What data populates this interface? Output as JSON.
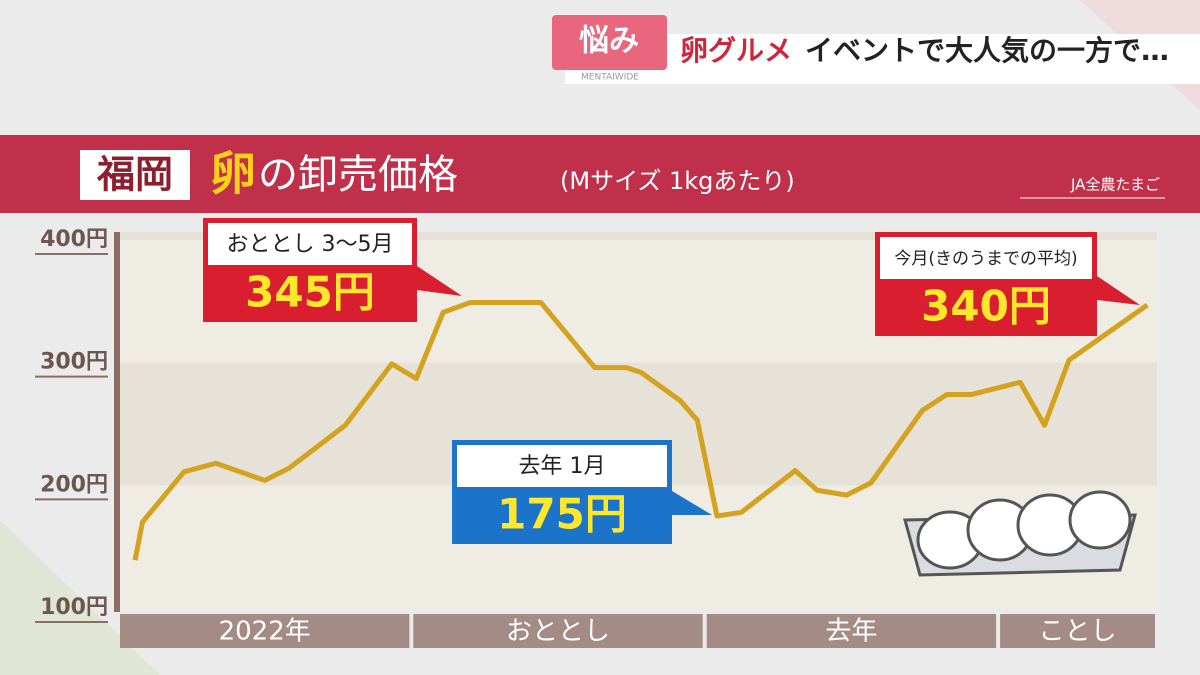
{
  "banner": {
    "tag": "悩み",
    "brand": "MENTAIWIDE",
    "topic": "卵グルメ",
    "headline": "イベントで大人気の一方で…"
  },
  "chart_data": {
    "type": "line",
    "region": "福岡",
    "title_head": "卵",
    "title": "の卸売価格",
    "subtitle": "(Mサイズ 1kgあたり)",
    "source": "JA全農たまご",
    "x": [
      0.7,
      1.0,
      2.7,
      4.0,
      6.0,
      7.0,
      9.3,
      11.2,
      12.2,
      13.3,
      14.4,
      17.3,
      19.5,
      20.8,
      21.4,
      23.0,
      23.7,
      24.5,
      25.5,
      27.7,
      28.6,
      29.8,
      30.8,
      32.9,
      33.9,
      34.9,
      36.9,
      37.9,
      38.9,
      42.1
    ],
    "series": [
      {
        "color": "#d4a21e",
        "values": [
          139,
          170,
          211,
          218,
          204,
          214,
          249,
          299,
          287,
          341,
          349,
          349,
          296,
          296,
          292,
          269,
          253,
          175,
          178,
          212,
          196,
          192,
          202,
          261,
          274,
          274,
          284,
          249,
          302,
          347
        ]
      }
    ],
    "xlim": [
      0,
      42.5
    ],
    "periods": [
      {
        "label": "2022年",
        "start": 0,
        "end": 12
      },
      {
        "label": "おととし",
        "start": 12,
        "end": 24
      },
      {
        "label": "去年",
        "start": 24,
        "end": 36
      },
      {
        "label": "ことし",
        "start": 36,
        "end": 42.5
      }
    ],
    "ylim": [
      100,
      400
    ],
    "yticks": [
      {
        "value": 100,
        "label": "100円"
      },
      {
        "value": 200,
        "label": "200円"
      },
      {
        "value": 300,
        "label": "300円"
      },
      {
        "value": 400,
        "label": "400円"
      }
    ],
    "annotations": [
      {
        "title": "おととし 3～5月",
        "text": "345円"
      },
      {
        "title": "去年 1月",
        "text": "175円"
      },
      {
        "title": "今月(きのうまでの平均)",
        "text": "340円"
      }
    ]
  }
}
